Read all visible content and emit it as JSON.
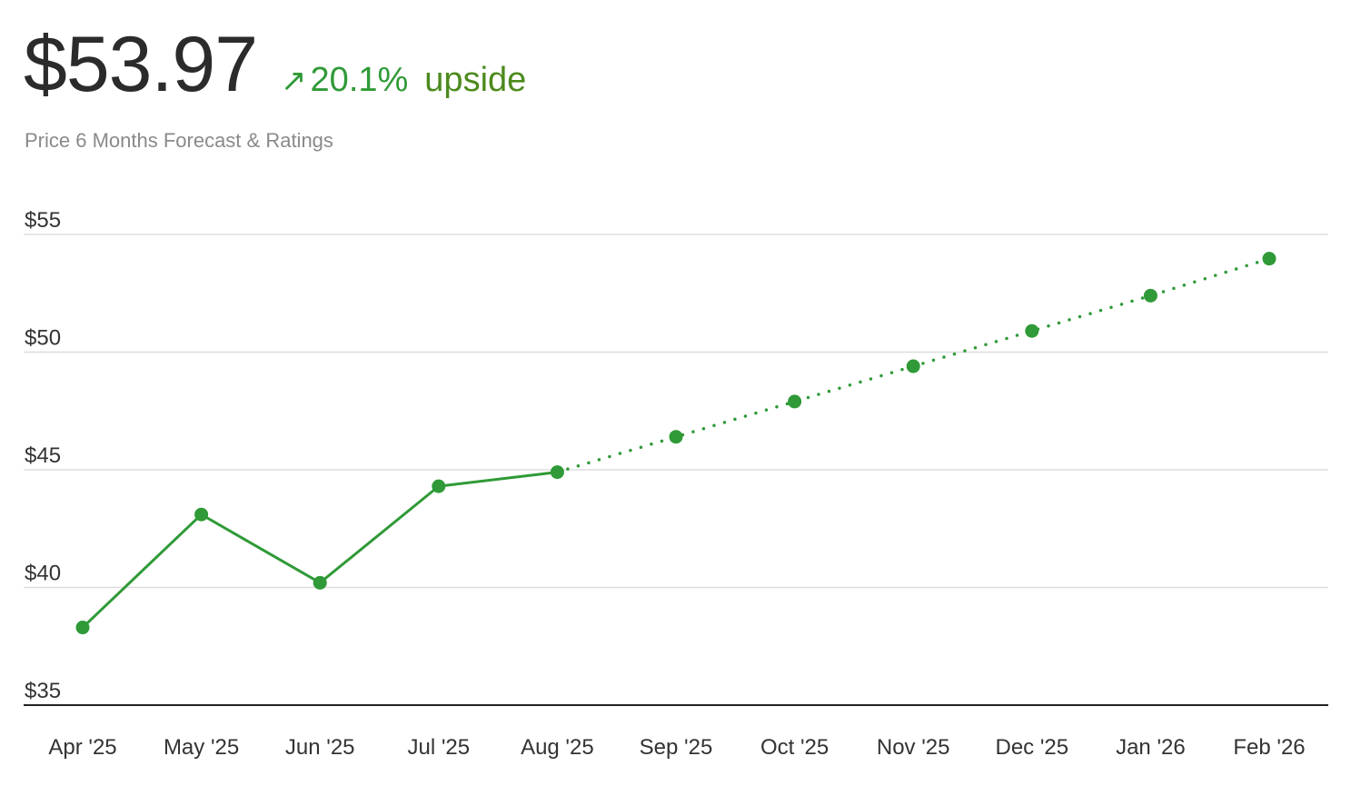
{
  "header": {
    "price": "$53.97",
    "arrow_icon": "arrow-up-right-icon",
    "arrow_glyph": "↗",
    "change_pct": "20.1%",
    "change_label": "upside",
    "subtitle": "Price 6 Months Forecast & Ratings"
  },
  "colors": {
    "line": "#2f9a37",
    "upside_text": "#4c8a1d",
    "grid": "#dddddd",
    "axis": "#222222"
  },
  "chart_data": {
    "type": "line",
    "title": "",
    "xlabel": "",
    "ylabel": "",
    "ylim": [
      35,
      55
    ],
    "y_ticks": [
      {
        "value": 55,
        "label": "$55"
      },
      {
        "value": 50,
        "label": "$50"
      },
      {
        "value": 45,
        "label": "$45"
      },
      {
        "value": 40,
        "label": "$40"
      },
      {
        "value": 35,
        "label": "$35"
      }
    ],
    "categories": [
      "Apr '25",
      "May '25",
      "Jun '25",
      "Jul '25",
      "Aug '25",
      "Sep '25",
      "Oct '25",
      "Nov '25",
      "Dec '25",
      "Jan '26",
      "Feb '26"
    ],
    "grid": true,
    "series": [
      {
        "style": "solid",
        "x": [
          "Apr '25",
          "May '25",
          "Jun '25",
          "Jul '25",
          "Aug '25"
        ],
        "values": [
          38.3,
          43.1,
          40.2,
          44.3,
          44.9
        ]
      },
      {
        "style": "dotted",
        "x": [
          "Aug '25",
          "Sep '25",
          "Oct '25",
          "Nov '25",
          "Dec '25",
          "Jan '26",
          "Feb '26"
        ],
        "values": [
          44.9,
          46.4,
          47.9,
          49.4,
          50.9,
          52.4,
          53.97
        ]
      }
    ]
  }
}
